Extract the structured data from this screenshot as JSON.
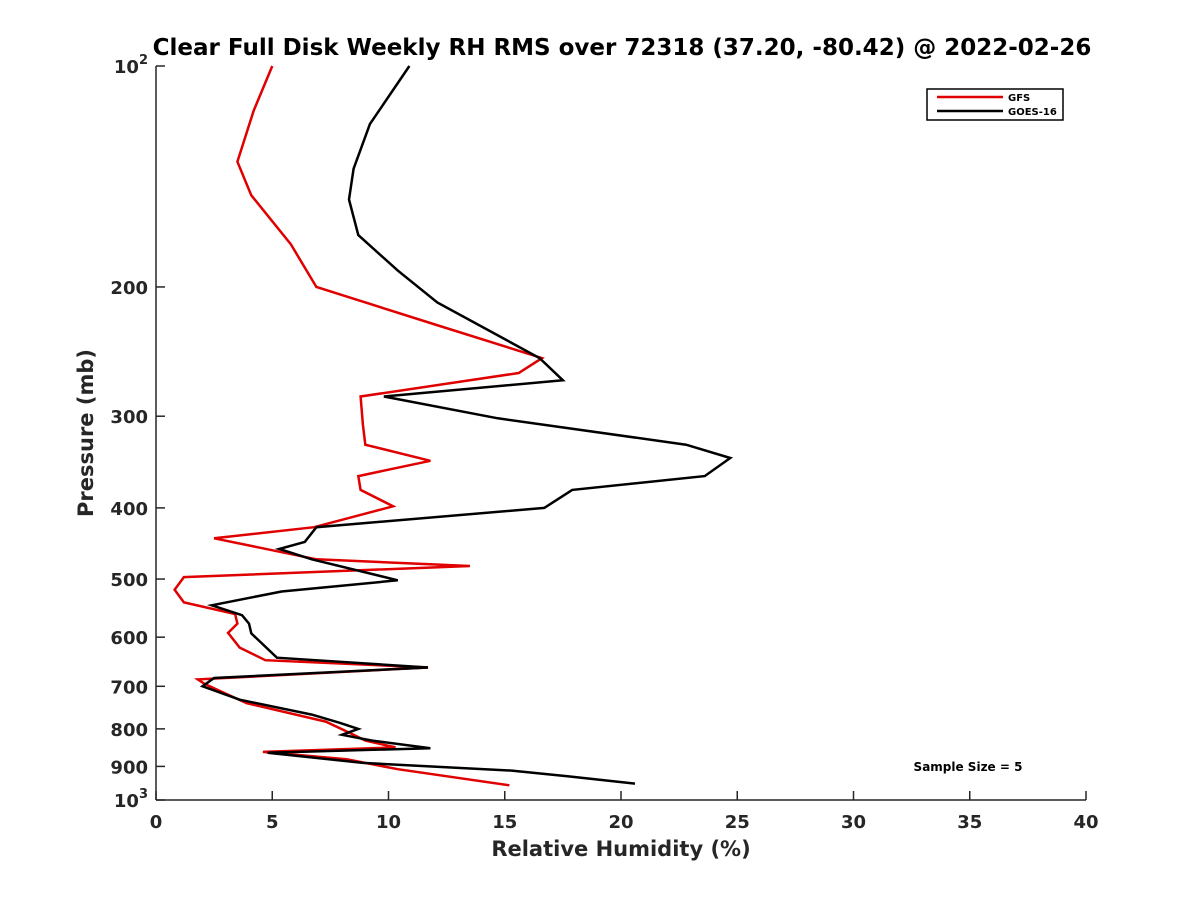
{
  "chart_data": {
    "type": "line",
    "title": "Clear Full Disk Weekly RH RMS over 72318 (37.20, -80.42) @ 2022-02-26",
    "xlabel": "Relative Humidity (%)",
    "ylabel": "Pressure (mb)",
    "xlim": [
      0,
      40
    ],
    "ylim": [
      100,
      1000
    ],
    "yscale": "log",
    "y_reversed": true,
    "grid": false,
    "legend_position": "top-right",
    "x_ticks": [
      "0",
      "5",
      "10",
      "15",
      "20",
      "25",
      "30",
      "35",
      "40"
    ],
    "y_ticks": [
      {
        "value": 100,
        "base": "10",
        "exp": "2"
      },
      {
        "value": 200,
        "base": "200",
        "exp": ""
      },
      {
        "value": 300,
        "base": "300",
        "exp": ""
      },
      {
        "value": 400,
        "base": "400",
        "exp": ""
      },
      {
        "value": 500,
        "base": "500",
        "exp": ""
      },
      {
        "value": 600,
        "base": "600",
        "exp": ""
      },
      {
        "value": 700,
        "base": "700",
        "exp": ""
      },
      {
        "value": 800,
        "base": "800",
        "exp": ""
      },
      {
        "value": 900,
        "base": "900",
        "exp": ""
      },
      {
        "value": 1000,
        "base": "10",
        "exp": "3"
      }
    ],
    "annotation": "Sample Size = 5",
    "series": [
      {
        "name": "GFS",
        "color": "#e00000",
        "points": [
          [
            5.0,
            100
          ],
          [
            4.2,
            115
          ],
          [
            3.5,
            135
          ],
          [
            4.1,
            150
          ],
          [
            5.8,
            175
          ],
          [
            6.9,
            200
          ],
          [
            12.0,
            225
          ],
          [
            16.6,
            250
          ],
          [
            15.6,
            262
          ],
          [
            8.8,
            282
          ],
          [
            8.9,
            308
          ],
          [
            9.0,
            328
          ],
          [
            11.8,
            345
          ],
          [
            8.7,
            362
          ],
          [
            8.8,
            378
          ],
          [
            10.2,
            398
          ],
          [
            6.8,
            425
          ],
          [
            2.5,
            440
          ],
          [
            6.9,
            470
          ],
          [
            13.5,
            480
          ],
          [
            1.2,
            497
          ],
          [
            0.8,
            517
          ],
          [
            1.2,
            538
          ],
          [
            3.4,
            558
          ],
          [
            3.5,
            575
          ],
          [
            3.1,
            592
          ],
          [
            3.6,
            620
          ],
          [
            4.7,
            645
          ],
          [
            11.7,
            660
          ],
          [
            1.8,
            685
          ],
          [
            2.1,
            695
          ],
          [
            3.9,
            738
          ],
          [
            7.3,
            782
          ],
          [
            8.4,
            812
          ],
          [
            9.0,
            830
          ],
          [
            10.3,
            848
          ],
          [
            4.6,
            860
          ],
          [
            8.2,
            880
          ],
          [
            10.4,
            908
          ],
          [
            15.2,
            955
          ]
        ]
      },
      {
        "name": "GOES-16",
        "color": "#000000",
        "points": [
          [
            10.9,
            100
          ],
          [
            9.2,
            120
          ],
          [
            8.5,
            138
          ],
          [
            8.3,
            152
          ],
          [
            8.7,
            170
          ],
          [
            10.4,
            190
          ],
          [
            12.1,
            210
          ],
          [
            16.5,
            250
          ],
          [
            17.5,
            268
          ],
          [
            9.8,
            282
          ],
          [
            14.7,
            302
          ],
          [
            22.8,
            328
          ],
          [
            24.7,
            342
          ],
          [
            23.6,
            362
          ],
          [
            17.9,
            378
          ],
          [
            16.7,
            400
          ],
          [
            6.9,
            425
          ],
          [
            6.4,
            445
          ],
          [
            5.3,
            455
          ],
          [
            6.7,
            470
          ],
          [
            10.4,
            502
          ],
          [
            5.4,
            520
          ],
          [
            2.4,
            543
          ],
          [
            3.7,
            560
          ],
          [
            4.0,
            575
          ],
          [
            4.1,
            593
          ],
          [
            5.2,
            640
          ],
          [
            11.7,
            660
          ],
          [
            2.5,
            682
          ],
          [
            2.0,
            700
          ],
          [
            3.6,
            730
          ],
          [
            6.7,
            765
          ],
          [
            7.9,
            785
          ],
          [
            8.7,
            800
          ],
          [
            8.0,
            815
          ],
          [
            9.3,
            830
          ],
          [
            11.8,
            850
          ],
          [
            4.8,
            862
          ],
          [
            8.9,
            890
          ],
          [
            15.3,
            912
          ],
          [
            17.7,
            928
          ],
          [
            20.6,
            950
          ]
        ]
      }
    ]
  }
}
